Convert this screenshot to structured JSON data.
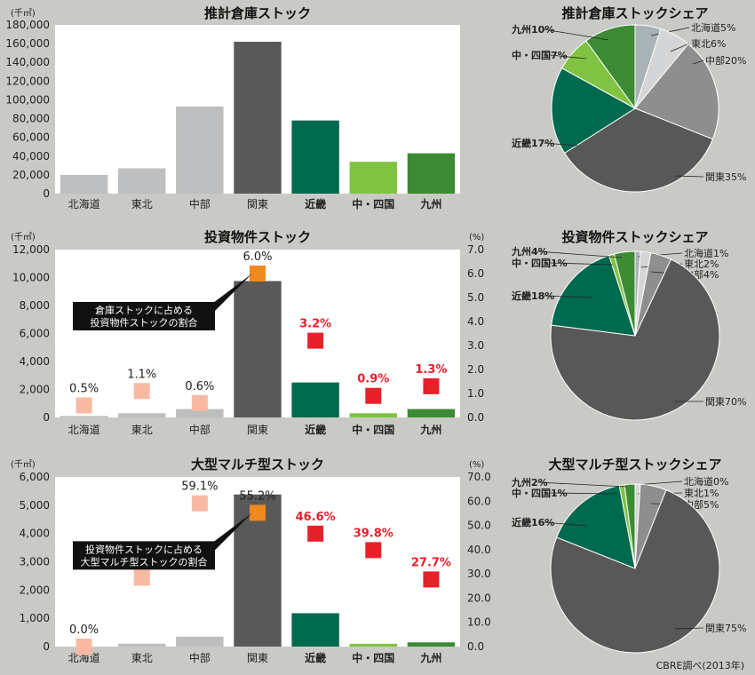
{
  "source_note": "CBRE調べ(2013年)",
  "chart_data": [
    {
      "type": "bar",
      "title": "推計倉庫ストック",
      "y_unit": "(千㎡)",
      "ylim": [
        0,
        180000
      ],
      "yticks": [
        "0",
        "20,000",
        "40,000",
        "60,000",
        "80,000",
        "100,000",
        "120,000",
        "140,000",
        "160,000",
        "180,000"
      ],
      "categories": [
        "北海道",
        "東北",
        "中部",
        "関東",
        "近畿",
        "中・四国",
        "九州"
      ],
      "values": [
        20000,
        27000,
        93000,
        162000,
        78000,
        34000,
        43000
      ],
      "bar_colors": [
        "#bdbebf",
        "#bdbebf",
        "#bdbebf",
        "#595959",
        "#006a4e",
        "#80c342",
        "#3c8b34"
      ],
      "bold_categories": [
        false,
        false,
        false,
        false,
        true,
        true,
        true
      ],
      "grid": false
    },
    {
      "type": "pie",
      "title": "推計倉庫ストックシェア",
      "slices": [
        {
          "label": "北海道",
          "value": 5,
          "text": "北海道5%",
          "color": "#a9b2b6"
        },
        {
          "label": "東北",
          "value": 6,
          "text": "東北6%",
          "color": "#d4d5d6"
        },
        {
          "label": "中部",
          "value": 20,
          "text": "中部20%",
          "color": "#8e8e8e"
        },
        {
          "label": "関東",
          "value": 35,
          "text": "関東35%",
          "color": "#585858"
        },
        {
          "label": "近畿",
          "value": 17,
          "text": "近畿17%",
          "color": "#006a4e"
        },
        {
          "label": "中・四国",
          "value": 7,
          "text": "中・四国7%",
          "color": "#80c342"
        },
        {
          "label": "九州",
          "value": 10,
          "text": "九州10%",
          "color": "#3c8b34"
        }
      ]
    },
    {
      "type": "bar",
      "title": "投資物件ストック",
      "y_unit": "(千㎡)",
      "ylim": [
        0,
        12000
      ],
      "yticks": [
        "0",
        "2,000",
        "4,000",
        "6,000",
        "8,000",
        "10,000",
        "12,000"
      ],
      "y2_unit": "(%)",
      "y2lim": [
        0,
        7
      ],
      "y2ticks": [
        "0.0",
        "1.0",
        "2.0",
        "3.0",
        "4.0",
        "5.0",
        "6.0",
        "7.0"
      ],
      "categories": [
        "北海道",
        "東北",
        "中部",
        "関東",
        "近畿",
        "中・四国",
        "九州"
      ],
      "values": [
        100,
        300,
        600,
        9750,
        2500,
        300,
        600
      ],
      "bar_colors": [
        "#bdbebf",
        "#bdbebf",
        "#bdbebf",
        "#595959",
        "#006a4e",
        "#80c342",
        "#3c8b34"
      ],
      "bold_categories": [
        false,
        false,
        false,
        false,
        true,
        true,
        true
      ],
      "ratio_values": [
        0.5,
        1.1,
        0.6,
        6.0,
        3.2,
        0.9,
        1.3
      ],
      "ratio_labels": [
        "0.5%",
        "1.1%",
        "0.6%",
        "6.0%",
        "3.2%",
        "0.9%",
        "1.3%"
      ],
      "ratio_colors": [
        "#f8b9a3",
        "#f8b9a3",
        "#f8b9a3",
        "#f08a1c",
        "#e8202a",
        "#e8202a",
        "#e8202a"
      ],
      "ratio_label_colors": [
        "#222222",
        "#222222",
        "#222222",
        "#222222",
        "#e8202a",
        "#e8202a",
        "#e8202a"
      ],
      "callout": "倉庫ストックに占める\n投資物件ストックの割合",
      "grid": false
    },
    {
      "type": "pie",
      "title": "投資物件ストックシェア",
      "slices": [
        {
          "label": "北海道",
          "value": 1,
          "text": "北海道1%",
          "color": "#a9b2b6"
        },
        {
          "label": "東北",
          "value": 2,
          "text": "東北2%",
          "color": "#d4d5d6"
        },
        {
          "label": "中部",
          "value": 4,
          "text": "中部4%",
          "color": "#8e8e8e"
        },
        {
          "label": "関東",
          "value": 70,
          "text": "関東70%",
          "color": "#585858"
        },
        {
          "label": "近畿",
          "value": 18,
          "text": "近畿18%",
          "color": "#006a4e"
        },
        {
          "label": "中・四国",
          "value": 1,
          "text": "中・四国1%",
          "color": "#80c342"
        },
        {
          "label": "九州",
          "value": 4,
          "text": "九州4%",
          "color": "#3c8b34"
        }
      ]
    },
    {
      "type": "bar",
      "title": "大型マルチ型ストック",
      "y_unit": "(千㎡)",
      "ylim": [
        0,
        6000
      ],
      "yticks": [
        "0",
        "1,000",
        "2,000",
        "3,000",
        "4,000",
        "5,000",
        "6,000"
      ],
      "y2_unit": "(%)",
      "y2lim": [
        0,
        70
      ],
      "y2ticks": [
        "0.0",
        "10.0",
        "20.0",
        "30.0",
        "40.0",
        "50.0",
        "60.0",
        "70.0"
      ],
      "categories": [
        "北海道",
        "東北",
        "中部",
        "関東",
        "近畿",
        "中・四国",
        "九州"
      ],
      "values": [
        0,
        100,
        350,
        5380,
        1180,
        100,
        150
      ],
      "bar_colors": [
        "#bdbebf",
        "#bdbebf",
        "#bdbebf",
        "#595959",
        "#006a4e",
        "#80c342",
        "#3c8b34"
      ],
      "bold_categories": [
        false,
        false,
        false,
        false,
        true,
        true,
        true
      ],
      "ratio_values": [
        0.0,
        28.4,
        59.1,
        55.2,
        46.6,
        39.8,
        27.7
      ],
      "ratio_labels": [
        "0.0%",
        "28.4%",
        "59.1%",
        "55.2%",
        "46.6%",
        "39.8%",
        "27.7%"
      ],
      "ratio_colors": [
        "#f8b9a3",
        "#f8b9a3",
        "#f8b9a3",
        "#f08a1c",
        "#e8202a",
        "#e8202a",
        "#e8202a"
      ],
      "ratio_label_colors": [
        "#222222",
        "#222222",
        "#222222",
        "#222222",
        "#e8202a",
        "#e8202a",
        "#e8202a"
      ],
      "callout": "投資物件ストックに占める\n大型マルチ型ストックの割合",
      "grid": false
    },
    {
      "type": "pie",
      "title": "大型マルチ型ストックシェア",
      "slices": [
        {
          "label": "北海道",
          "value": 0,
          "text": "北海道0%",
          "color": "#a9b2b6"
        },
        {
          "label": "東北",
          "value": 1,
          "text": "東北1%",
          "color": "#d4d5d6"
        },
        {
          "label": "中部",
          "value": 5,
          "text": "中部5%",
          "color": "#8e8e8e"
        },
        {
          "label": "関東",
          "value": 75,
          "text": "関東75%",
          "color": "#585858"
        },
        {
          "label": "近畿",
          "value": 16,
          "text": "近畿16%",
          "color": "#006a4e"
        },
        {
          "label": "中・四国",
          "value": 1,
          "text": "中・四国1%",
          "color": "#80c342"
        },
        {
          "label": "九州",
          "value": 2,
          "text": "九州2%",
          "color": "#3c8b34"
        }
      ]
    }
  ]
}
